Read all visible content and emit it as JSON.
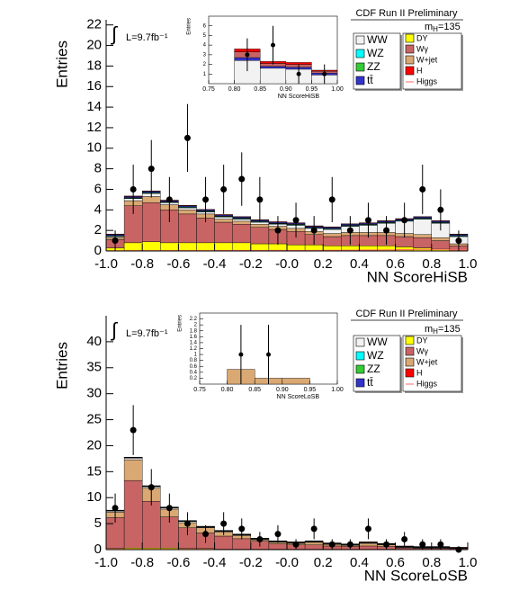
{
  "chart_data": [
    {
      "type": "histogram",
      "title": "CDF Run II Preliminary",
      "xlabel": "NN ScoreHiSB",
      "ylabel": "Entries",
      "lumi_symbol": "∫",
      "lumi": "L=9.7fb⁻¹",
      "mass_symbol": "m",
      "mass_subscript": "H",
      "mass_text": "=135",
      "bins": [
        -1,
        -0.9,
        -0.8,
        -0.7,
        -0.6,
        -0.5,
        -0.4,
        -0.3,
        -0.2,
        -0.1,
        0,
        0.1,
        0.2,
        0.3,
        0.4,
        0.5,
        0.6,
        0.7,
        0.8,
        0.9,
        1
      ],
      "xlim": [
        -1,
        1
      ],
      "ylim": [
        0,
        22.5
      ],
      "xticks": [
        {
          "value": -1,
          "label": "-1.0"
        },
        -0.8,
        -0.6,
        -0.4,
        -0.2,
        {
          "value": 0,
          "label": "-0.0"
        },
        0.2,
        0.4,
        0.6,
        0.8,
        {
          "value": 1,
          "label": "1.0"
        }
      ],
      "yticks": [
        0,
        2,
        4,
        6,
        8,
        10,
        12,
        14,
        16,
        18,
        20,
        22
      ],
      "series": [
        {
          "name": "WW",
          "color": "#f2f2f2",
          "values": [
            0.1,
            0.2,
            0.3,
            0.2,
            0.2,
            0.2,
            0.2,
            0.2,
            0.2,
            0.2,
            0.3,
            0.3,
            0.4,
            0.6,
            0.7,
            0.9,
            1.2,
            1.5,
            1.4,
            0.7
          ]
        },
        {
          "name": "WZ",
          "color": "#00ffff",
          "values": [
            0.05,
            0.05,
            0.05,
            0.05,
            0.05,
            0.05,
            0.05,
            0.05,
            0.05,
            0.05,
            0.05,
            0.05,
            0.05,
            0.05,
            0.05,
            0.05,
            0.05,
            0.05,
            0.05,
            0.05
          ]
        },
        {
          "name": "ZZ",
          "color": "#33cc33",
          "values": [
            0.05,
            0.05,
            0.05,
            0.05,
            0.05,
            0.05,
            0.05,
            0.05,
            0.05,
            0.05,
            0.05,
            0.05,
            0.05,
            0.05,
            0.05,
            0.05,
            0.05,
            0.05,
            0.05,
            0.05
          ]
        },
        {
          "name": "tt̄",
          "color": "#3333cc",
          "values": [
            0.1,
            0.1,
            0.1,
            0.1,
            0.1,
            0.1,
            0.1,
            0.1,
            0.1,
            0.1,
            0.1,
            0.1,
            0.1,
            0.1,
            0.1,
            0.1,
            0.1,
            0.1,
            0.1,
            0.1
          ]
        },
        {
          "name": "DY",
          "color": "#ffff00",
          "values": [
            0.3,
            0.8,
            0.9,
            0.8,
            0.8,
            0.8,
            0.8,
            0.8,
            0.7,
            0.7,
            0.6,
            0.6,
            0.5,
            0.5,
            0.5,
            0.5,
            0.4,
            0.3,
            0.2,
            0.1
          ]
        },
        {
          "name": "Wγ",
          "color": "#c86464",
          "values": [
            0.8,
            3.6,
            3.8,
            3.2,
            2.8,
            2.4,
            2.0,
            1.8,
            1.6,
            1.4,
            1.3,
            1.0,
            0.9,
            1.0,
            1.0,
            1.0,
            1.0,
            1.0,
            0.8,
            0.4
          ]
        },
        {
          "name": "W+jet",
          "color": "#d9a873",
          "values": [
            0.2,
            0.5,
            0.6,
            0.5,
            0.4,
            0.4,
            0.3,
            0.3,
            0.3,
            0.3,
            0.3,
            0.3,
            0.3,
            0.3,
            0.3,
            0.3,
            0.3,
            0.3,
            0.3,
            0.2
          ]
        },
        {
          "name": "H",
          "color": "#ff0000",
          "values": [
            0.05,
            0.05,
            0.05,
            0.05,
            0.05,
            0.05,
            0.05,
            0.05,
            0.05,
            0.05,
            0.05,
            0.05,
            0.05,
            0.05,
            0.05,
            0.05,
            0.05,
            0.05,
            0.05,
            0.05
          ]
        },
        {
          "name": "Higgs",
          "color": "#ff6666",
          "line": true,
          "values": [
            0.02,
            0.03,
            0.03,
            0.03,
            0.03,
            0.03,
            0.04,
            0.04,
            0.04,
            0.05,
            0.05,
            0.06,
            0.07,
            0.08,
            0.09,
            0.1,
            0.12,
            0.15,
            0.15,
            0.1
          ]
        }
      ],
      "data": {
        "color": "#000000",
        "values": [
          1,
          6,
          8,
          5,
          11,
          5,
          6,
          7,
          5,
          2,
          3,
          2,
          5,
          2,
          3,
          2,
          3,
          6,
          4,
          1
        ],
        "errors": [
          1,
          2.4,
          2.8,
          2.2,
          3.3,
          2.2,
          2.4,
          2.6,
          2.2,
          1.4,
          1.7,
          1.4,
          2.2,
          1.4,
          1.7,
          1.4,
          1.7,
          2.4,
          2,
          1
        ]
      },
      "inset": {
        "xlabel": "NN ScoreHiSB",
        "ylabel": "Entries",
        "bins": [
          0.75,
          0.8,
          0.85,
          0.9,
          0.95,
          1
        ],
        "xlim": [
          0.75,
          1
        ],
        "ylim": [
          0,
          7
        ],
        "xticks": [
          0.75,
          {
            "value": 0.8,
            "label": "0.80"
          },
          0.85,
          {
            "value": 0.9,
            "label": "0.90"
          },
          0.95,
          {
            "value": 1,
            "label": "1.00"
          }
        ],
        "yticks": [
          1,
          2,
          3,
          4,
          5,
          6
        ],
        "series": [
          {
            "color": "#f2f2f2",
            "values": [
              0,
              2.4,
              1.6,
              1.5,
              0.9
            ]
          },
          {
            "color": "#3333cc",
            "values": [
              0,
              0.3,
              0.2,
              0.2,
              0.2
            ]
          },
          {
            "color": "#c86464",
            "values": [
              0,
              0.6,
              0.3,
              0.3,
              0.2
            ]
          },
          {
            "color": "#ff0000",
            "values": [
              0,
              0.3,
              0.2,
              0.2,
              0.1
            ]
          }
        ],
        "data": {
          "values": [
            null,
            3,
            4,
            1,
            1
          ],
          "errors": [
            null,
            1.7,
            2,
            1,
            1
          ]
        }
      }
    },
    {
      "type": "histogram",
      "title": "CDF Run II Preliminary",
      "xlabel": "NN ScoreLoSB",
      "ylabel": "Entries",
      "lumi_symbol": "∫",
      "lumi": "L=9.7fb⁻¹",
      "mass_symbol": "m",
      "mass_subscript": "H",
      "mass_text": "=135",
      "bins": [
        -1,
        -0.9,
        -0.8,
        -0.7,
        -0.6,
        -0.5,
        -0.4,
        -0.3,
        -0.2,
        -0.1,
        0,
        0.1,
        0.2,
        0.3,
        0.4,
        0.5,
        0.6,
        0.7,
        0.8,
        0.9,
        1
      ],
      "xlim": [
        -1,
        1
      ],
      "ylim": [
        0,
        45
      ],
      "xticks": [
        {
          "value": -1,
          "label": "-1.0"
        },
        -0.8,
        -0.6,
        -0.4,
        -0.2,
        {
          "value": 0,
          "label": "-0.0"
        },
        0.2,
        0.4,
        0.6,
        0.8,
        {
          "value": 1,
          "label": "1.0"
        }
      ],
      "yticks": [
        0,
        5,
        10,
        15,
        20,
        25,
        30,
        35,
        40
      ],
      "series": [
        {
          "name": "WW",
          "color": "#f2f2f2",
          "values": [
            0.2,
            0.3,
            0.3,
            0.2,
            0.2,
            0.1,
            0.1,
            0.1,
            0.1,
            0.1,
            0.1,
            0.1,
            0.1,
            0.1,
            0.1,
            0.1,
            0.1,
            0.1,
            0.1,
            0.05
          ]
        },
        {
          "name": "WZ",
          "color": "#00ffff",
          "values": [
            0.05,
            0.05,
            0.05,
            0.05,
            0.05,
            0.05,
            0.05,
            0.05,
            0.05,
            0.05,
            0.05,
            0.05,
            0.05,
            0.05,
            0.05,
            0.05,
            0.05,
            0.05,
            0.05,
            0.05
          ]
        },
        {
          "name": "ZZ",
          "color": "#33cc33",
          "values": [
            0.05,
            0.05,
            0.05,
            0.05,
            0.05,
            0.05,
            0.05,
            0.05,
            0.05,
            0.05,
            0.05,
            0.05,
            0.05,
            0.05,
            0.05,
            0.05,
            0.05,
            0.05,
            0.05,
            0.05
          ]
        },
        {
          "name": "tt̄",
          "color": "#3333cc",
          "values": [
            0.05,
            0.05,
            0.05,
            0.05,
            0.05,
            0.05,
            0.05,
            0.05,
            0.05,
            0.05,
            0.05,
            0.05,
            0.05,
            0.05,
            0.05,
            0.05,
            0.05,
            0.05,
            0.05,
            0.05
          ]
        },
        {
          "name": "DY",
          "color": "#ffff00",
          "values": [
            0.2,
            0.3,
            0.3,
            0.3,
            0.2,
            0.2,
            0.1,
            0.1,
            0.1,
            0.1,
            0.1,
            0.1,
            0.1,
            0.1,
            0.1,
            0.1,
            0,
            0,
            0,
            0
          ]
        },
        {
          "name": "Wγ",
          "color": "#c86464",
          "values": [
            6,
            13,
            9,
            6,
            4,
            3,
            2.5,
            2,
            1.5,
            1,
            0.8,
            0.8,
            0.6,
            0.5,
            0.6,
            0.5,
            0.3,
            0.2,
            0.2,
            0.1
          ]
        },
        {
          "name": "W+jet",
          "color": "#d9a873",
          "values": [
            1,
            4,
            2.5,
            1.5,
            1,
            1,
            0.8,
            0.6,
            0.3,
            0.3,
            0.3,
            0.5,
            0.3,
            0.2,
            0.5,
            0.3,
            0.1,
            0.1,
            0.1,
            0.1
          ]
        },
        {
          "name": "H",
          "color": "#ff0000",
          "values": [
            0.05,
            0.05,
            0.05,
            0.05,
            0.05,
            0.05,
            0.05,
            0.05,
            0.05,
            0.05,
            0.05,
            0.05,
            0.05,
            0.05,
            0.05,
            0.05,
            0.05,
            0.05,
            0.05,
            0.05
          ]
        },
        {
          "name": "Higgs",
          "color": "#ff6666",
          "line": true,
          "values": [
            0.05,
            0.05,
            0.05,
            0.05,
            0.05,
            0.05,
            0.05,
            0.05,
            0.05,
            0.05,
            0.05,
            0.05,
            0.05,
            0.05,
            0.05,
            0.05,
            0.05,
            0.05,
            0.05,
            0.05
          ]
        }
      ],
      "data": {
        "color": "#000000",
        "values": [
          8,
          23,
          12,
          8,
          5,
          3,
          5,
          4,
          2,
          3,
          1,
          4,
          1,
          1,
          4,
          1,
          2,
          1,
          1,
          0
        ],
        "errors": [
          2.8,
          4.8,
          3.5,
          2.8,
          2.2,
          1.7,
          2.2,
          2,
          1.4,
          1.7,
          1,
          2,
          1,
          1,
          2,
          1,
          1.4,
          1,
          1,
          0
        ]
      },
      "inset": {
        "xlabel": "NN ScoreLoSB",
        "ylabel": "Entries",
        "bins": [
          0.75,
          0.8,
          0.85,
          0.9,
          0.95,
          1
        ],
        "xlim": [
          0.75,
          1
        ],
        "ylim": [
          0,
          2.4
        ],
        "xticks": [
          0.75,
          {
            "value": 0.8,
            "label": "0.80"
          },
          0.85,
          {
            "value": 0.9,
            "label": "0.90"
          },
          0.95,
          {
            "value": 1,
            "label": "1.00"
          }
        ],
        "yticks": [
          0.2,
          0.4,
          0.6,
          0.8,
          1,
          1.2,
          1.4,
          1.6,
          1.8,
          2,
          2.2
        ],
        "series": [
          {
            "color": "#d9a873",
            "values": [
              0,
              0.5,
              0.2,
              0.2,
              0
            ]
          }
        ],
        "data": {
          "values": [
            null,
            1,
            1,
            null,
            null
          ],
          "errors": [
            null,
            1,
            1,
            null,
            null
          ]
        }
      }
    }
  ]
}
